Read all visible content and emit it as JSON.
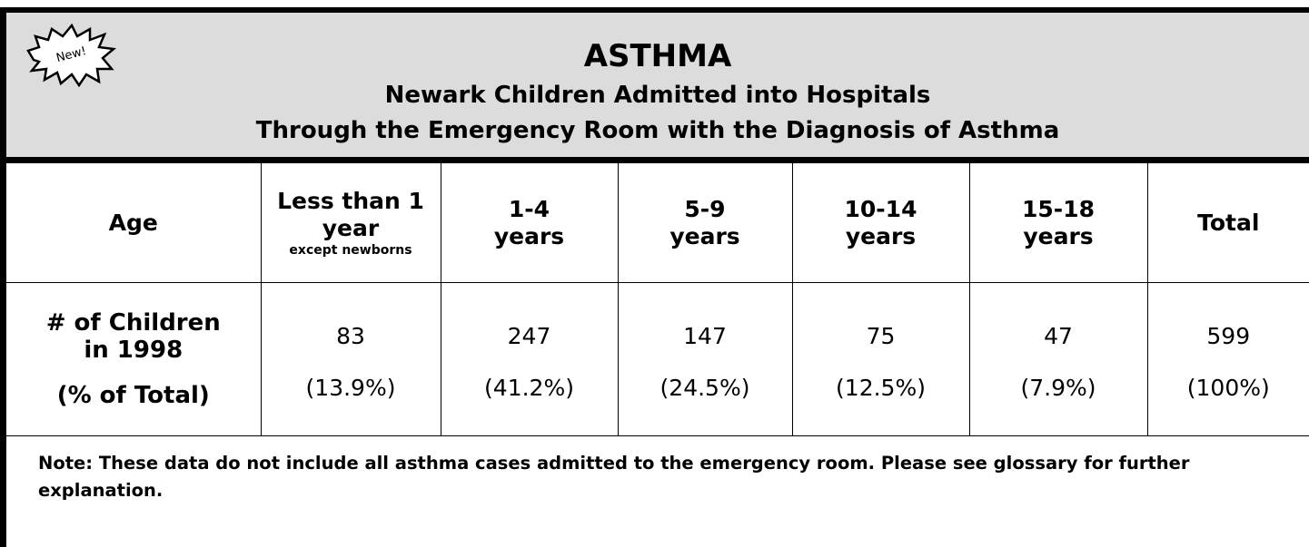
{
  "header": {
    "badge": "New!",
    "title": "ASTHMA",
    "subtitle_lines": [
      "Newark Children Admitted into Hospitals",
      "Through the Emergency Room with the Diagnosis of Asthma"
    ]
  },
  "table": {
    "header_row": [
      {
        "lines": [
          "Age"
        ]
      },
      {
        "lines": [
          "Less than 1",
          "year"
        ],
        "note": "except newborns"
      },
      {
        "lines": [
          "1-4",
          "years"
        ]
      },
      {
        "lines": [
          "5-9",
          "years"
        ]
      },
      {
        "lines": [
          "10-14",
          "years"
        ]
      },
      {
        "lines": [
          "15-18",
          "years"
        ]
      },
      {
        "lines": [
          "Total"
        ]
      }
    ],
    "row_label_lines": [
      "# of Children",
      "in 1998"
    ],
    "pct_label": "(% of Total)",
    "counts": [
      83,
      247,
      147,
      75,
      47,
      599
    ],
    "percents": [
      "(13.9%)",
      "(41.2%)",
      "(24.5%)",
      "(12.5%)",
      "(7.9%)",
      "(100%)"
    ]
  },
  "note": "Note:  These data do not include all asthma cases admitted to the emergency room.  Please see glossary for further explanation."
}
